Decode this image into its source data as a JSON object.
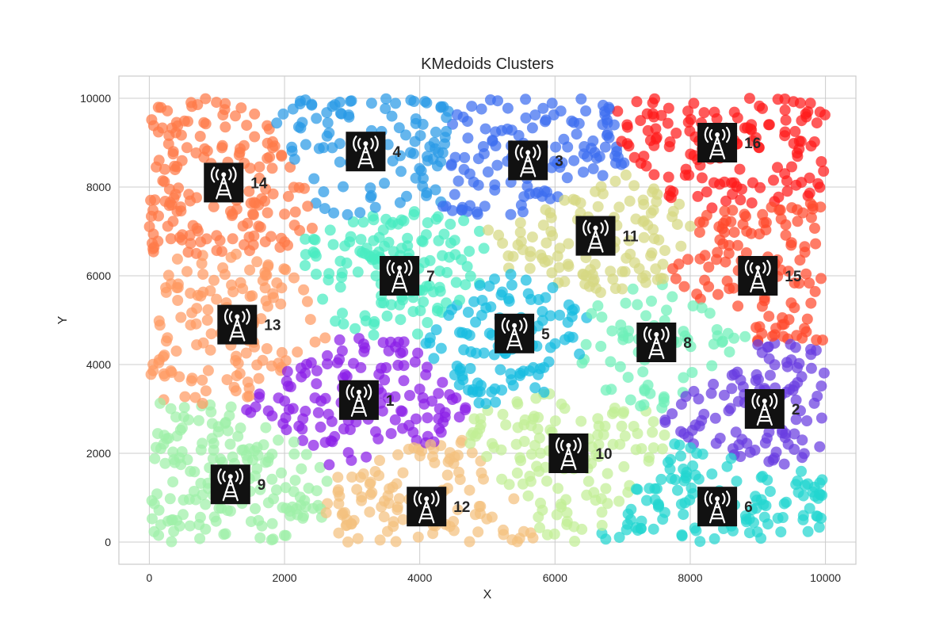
{
  "chart_data": {
    "type": "scatter",
    "title": "KMedoids Clusters",
    "xlabel": "X",
    "ylabel": "Y",
    "xlim": [
      -450,
      10450
    ],
    "ylim": [
      -500,
      10500
    ],
    "xticks": [
      0,
      2000,
      4000,
      6000,
      8000,
      10000
    ],
    "yticks": [
      0,
      2000,
      4000,
      6000,
      8000,
      10000
    ],
    "grid": true,
    "legend": "none",
    "point_cloud": {
      "x_range": [
        0,
        10000
      ],
      "y_range": [
        0,
        10000
      ],
      "point_count": 2000,
      "colored_by": "nearest medoid"
    },
    "medoids": [
      {
        "label": "1",
        "x": 3100,
        "y": 3200,
        "color": "#8a1fe8"
      },
      {
        "label": "2",
        "x": 9100,
        "y": 3000,
        "color": "#6a3de0"
      },
      {
        "label": "3",
        "x": 5600,
        "y": 8600,
        "color": "#3d6ef0"
      },
      {
        "label": "4",
        "x": 3200,
        "y": 8800,
        "color": "#2a9ae6"
      },
      {
        "label": "5",
        "x": 5400,
        "y": 4700,
        "color": "#18bce0"
      },
      {
        "label": "6",
        "x": 8400,
        "y": 800,
        "color": "#22d6d0"
      },
      {
        "label": "7",
        "x": 3700,
        "y": 6000,
        "color": "#48ecc0"
      },
      {
        "label": "8",
        "x": 7500,
        "y": 4500,
        "color": "#6ef0b8"
      },
      {
        "label": "9",
        "x": 1200,
        "y": 1300,
        "color": "#9ef0a8"
      },
      {
        "label": "10",
        "x": 6200,
        "y": 2000,
        "color": "#c2ee96"
      },
      {
        "label": "11",
        "x": 6600,
        "y": 6900,
        "color": "#d6d882"
      },
      {
        "label": "12",
        "x": 4100,
        "y": 800,
        "color": "#f4c07e"
      },
      {
        "label": "13",
        "x": 1300,
        "y": 4900,
        "color": "#ff9a62"
      },
      {
        "label": "14",
        "x": 1100,
        "y": 8100,
        "color": "#ff7a48"
      },
      {
        "label": "15",
        "x": 9000,
        "y": 6000,
        "color": "#ff4a2c"
      },
      {
        "label": "16",
        "x": 8400,
        "y": 9000,
        "color": "#ff1a1a"
      }
    ]
  }
}
